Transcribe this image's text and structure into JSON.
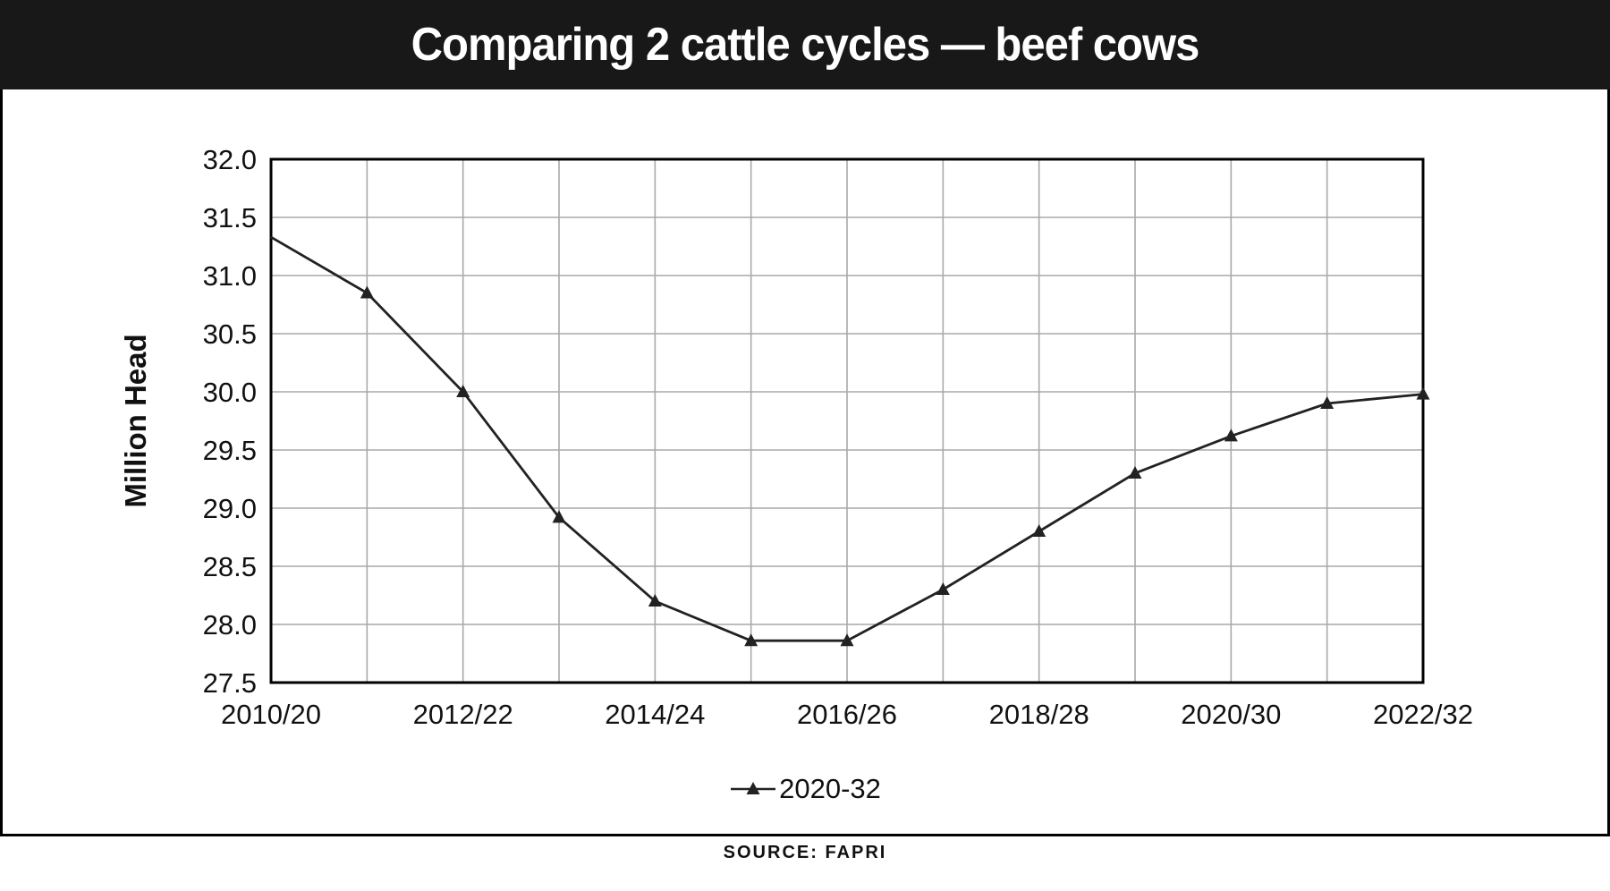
{
  "header": {
    "title": "Comparing 2 cattle cycles — beef cows"
  },
  "legend": {
    "label": "2020-32"
  },
  "source": "SOURCE: FAPRI",
  "colors": {
    "header_bg": "#181818",
    "grid": "#a9a9a9",
    "line": "#222222",
    "text": "#111111",
    "plot_border": "#000000"
  },
  "chart_data": {
    "type": "line",
    "title": "Comparing 2 cattle cycles — beef cows",
    "xlabel": "",
    "ylabel": "Million Head",
    "ylim": [
      27.5,
      32.0
    ],
    "ytick_step": 0.5,
    "grid": true,
    "legend_position": "bottom",
    "x_tick_labels_shown": [
      "2010/20",
      "2012/22",
      "2014/24",
      "2016/26",
      "2018/28",
      "2020/30",
      "2022/32"
    ],
    "categories": [
      "2010/20",
      "2011/21",
      "2012/22",
      "2013/23",
      "2014/24",
      "2015/25",
      "2016/26",
      "2017/27",
      "2018/28",
      "2019/29",
      "2020/30",
      "2021/31",
      "2022/32"
    ],
    "series": [
      {
        "name": "2020-32",
        "marker": "triangle",
        "values": [
          31.33,
          30.85,
          30.0,
          28.92,
          28.2,
          27.86,
          27.86,
          28.3,
          28.8,
          29.3,
          29.62,
          29.9,
          29.98
        ]
      }
    ],
    "source": "SOURCE: FAPRI"
  }
}
